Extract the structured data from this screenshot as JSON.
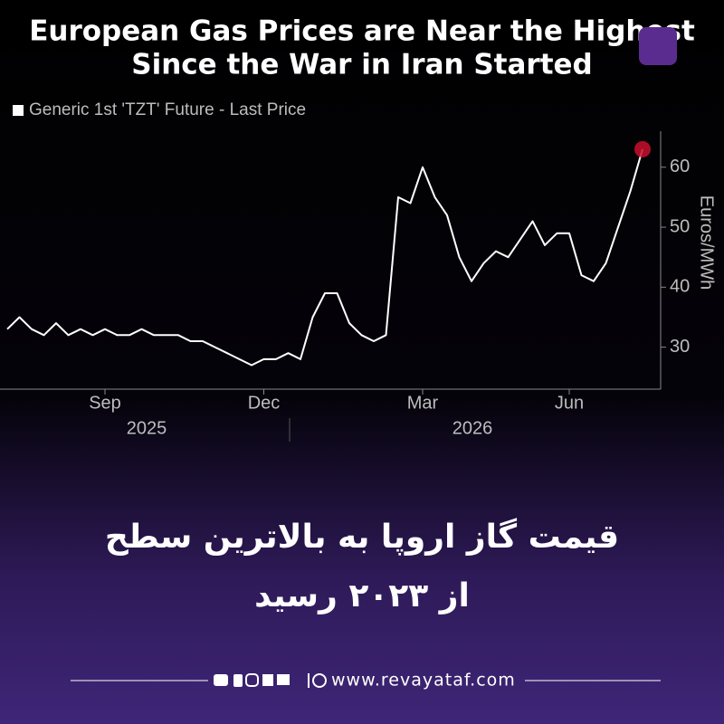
{
  "title_lines": [
    "European Gas Prices are Near the Highest",
    "Since the War in Iran Started"
  ],
  "chart_data": {
    "type": "line",
    "legend": "Generic 1st 'TZT' Future - Last Price",
    "y_label": "Euros/MWh",
    "categories": [
      null,
      null,
      null,
      null,
      null,
      null,
      null,
      null,
      "Sep",
      null,
      null,
      null,
      null,
      null,
      null,
      null,
      null,
      null,
      null,
      null,
      null,
      "Dec",
      null,
      null,
      null,
      null,
      null,
      null,
      null,
      null,
      null,
      null,
      null,
      null,
      "Mar",
      null,
      null,
      null,
      null,
      null,
      null,
      null,
      null,
      null,
      null,
      null,
      "Jun",
      null,
      null,
      null,
      null,
      null,
      null
    ],
    "year_labels": [
      "2025",
      "2026"
    ],
    "series": [
      {
        "name": "Generic 1st 'TZT' Future - Last Price",
        "color": "#ffffff",
        "values": [
          33,
          35,
          33,
          32,
          34,
          32,
          33,
          32,
          33,
          32,
          32,
          33,
          32,
          32,
          32,
          31,
          31,
          30,
          29,
          28,
          27,
          28,
          28,
          29,
          28,
          35,
          39,
          39,
          34,
          32,
          31,
          32,
          55,
          54,
          60,
          55,
          52,
          45,
          41,
          44,
          46,
          45,
          48,
          51,
          47,
          49,
          49,
          42,
          41,
          44,
          50,
          56,
          63
        ]
      }
    ],
    "marker_color": "#c8102e",
    "ylim": [
      23,
      66
    ],
    "yticks": [
      30,
      40,
      50,
      60
    ],
    "grid": false
  },
  "headline_lines": [
    "قیمت گاز اروپا به بالاترین سطح",
    "از ۲۰۲۳ رسید"
  ],
  "footer": {
    "website": "www.revayataf.com"
  }
}
